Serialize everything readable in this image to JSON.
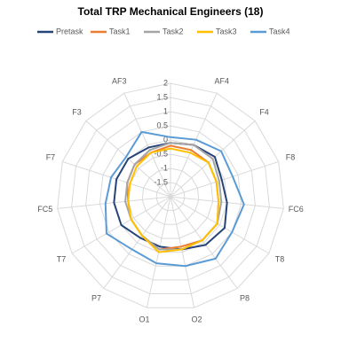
{
  "chart_data": {
    "type": "radar",
    "title": "Total TRP Mechanical Engineers (18)",
    "categories": [
      null,
      "AF4",
      "F4",
      "F8",
      "FC6",
      "T8",
      "P8",
      "O2",
      "O1",
      "P7",
      "T7",
      "FC5",
      "F7",
      "F3",
      "AF3"
    ],
    "series": [
      {
        "name": "Pretask",
        "color": "#264478",
        "values": [
          -0.1,
          0.0,
          0.1,
          -0.1,
          0.0,
          0.2,
          0.1,
          -0.1,
          -0.2,
          -0.2,
          0.0,
          0.0,
          0.0,
          0.0,
          -0.1
        ]
      },
      {
        "name": "Task1",
        "color": "#ed7d31",
        "values": [
          -0.2,
          -0.2,
          -0.2,
          -0.3,
          -0.3,
          -0.1,
          -0.1,
          -0.2,
          -0.1,
          -0.3,
          -0.4,
          -0.5,
          -0.4,
          -0.3,
          -0.3
        ]
      },
      {
        "name": "Task2",
        "color": "#a5a5a5",
        "values": [
          -0.1,
          0.0,
          0.0,
          -0.2,
          -0.2,
          -0.1,
          -0.1,
          -0.1,
          -0.1,
          -0.3,
          -0.4,
          -0.4,
          -0.4,
          -0.3,
          -0.2
        ]
      },
      {
        "name": "Task3",
        "color": "#ffc000",
        "values": [
          -0.3,
          -0.3,
          -0.2,
          -0.3,
          -0.3,
          -0.1,
          -0.1,
          -0.1,
          0.0,
          -0.3,
          -0.4,
          -0.5,
          -0.5,
          -0.4,
          -0.3
        ]
      },
      {
        "name": "Task4",
        "color": "#5b9bd5",
        "values": [
          0.1,
          0.2,
          0.4,
          0.3,
          0.6,
          0.5,
          0.7,
          0.5,
          0.4,
          0.3,
          0.6,
          0.3,
          0.2,
          0.1,
          0.5
        ]
      }
    ],
    "ylim": [
      -2,
      2
    ],
    "yticks": [
      -1.5,
      -1,
      -0.5,
      0,
      0.5,
      1,
      1.5,
      2
    ],
    "grid": true
  }
}
